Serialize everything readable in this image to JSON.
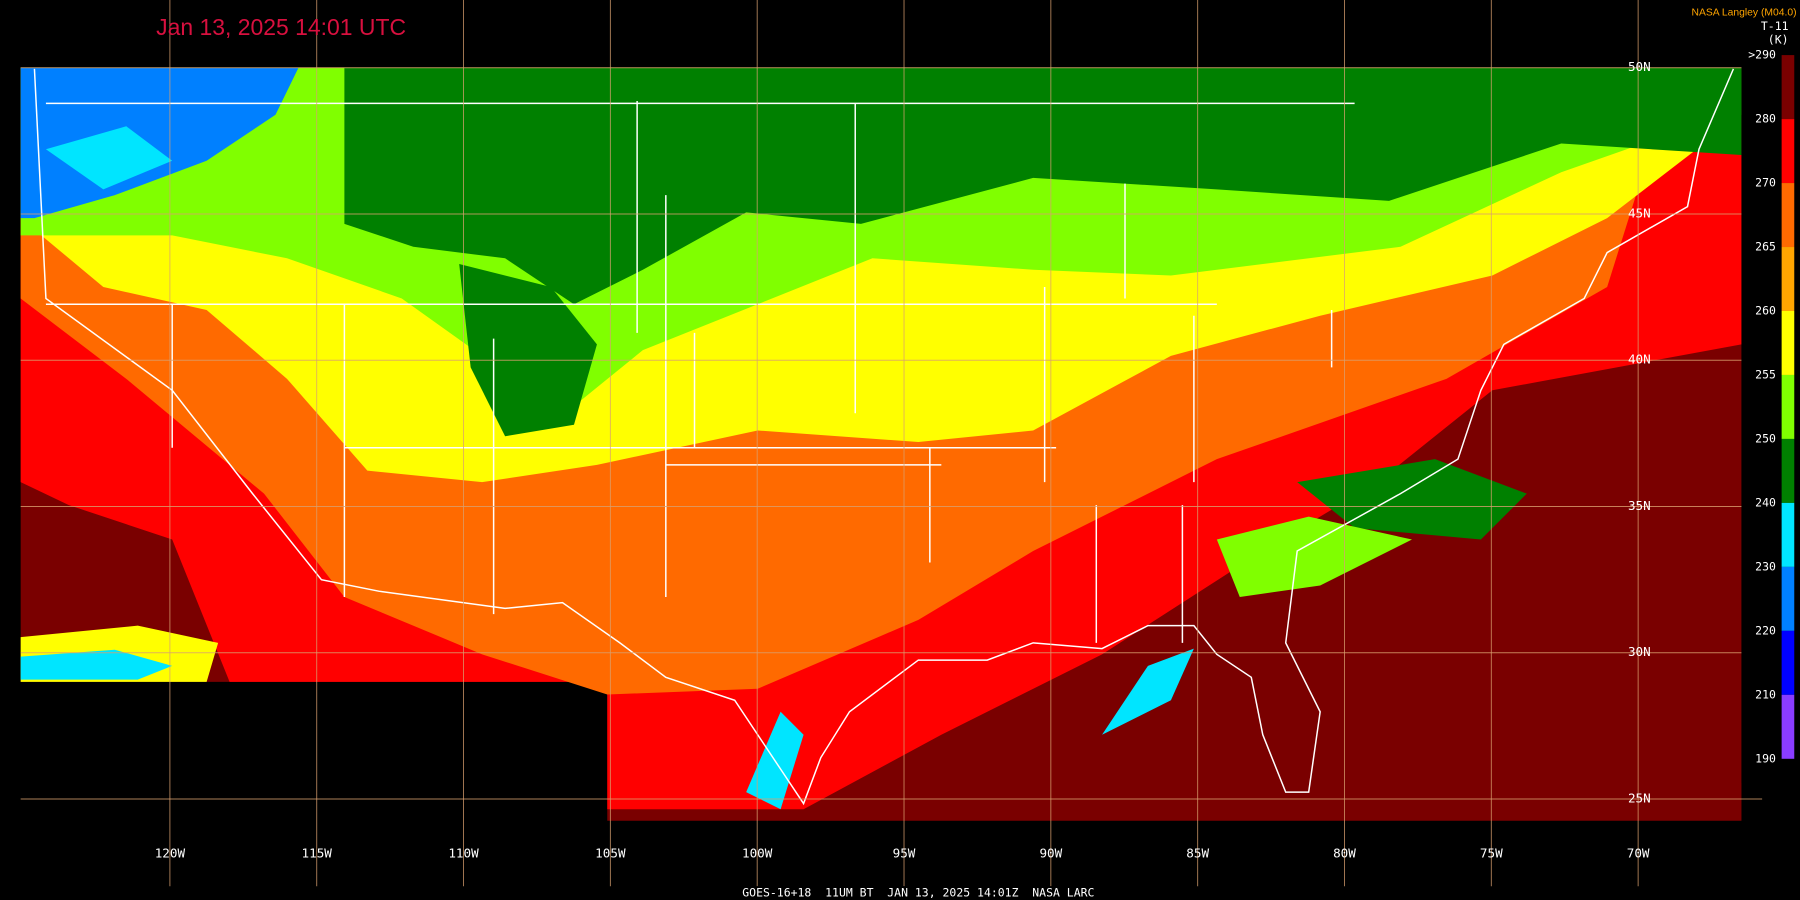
{
  "header": {
    "title": "Jan 13, 2025 14:01 UTC",
    "credit": "NASA Langley (M04.0)"
  },
  "legend": {
    "title": "T-11",
    "unit": "(K)",
    "labels": [
      ">290",
      "280",
      "270",
      "265",
      "260",
      "255",
      "250",
      "240",
      "230",
      "220",
      "210",
      "190"
    ],
    "colors": [
      "#7a0000",
      "#ff0000",
      "#ff6a00",
      "#ffa500",
      "#ffff00",
      "#80ff00",
      "#008000",
      "#00e5ff",
      "#0080ff",
      "#0000ff",
      "#8a3cff"
    ]
  },
  "latitude_labels": [
    "50N",
    "45N",
    "40N",
    "35N",
    "30N",
    "25N"
  ],
  "longitude_labels": [
    "120W",
    "115W",
    "110W",
    "105W",
    "100W",
    "95W",
    "90W",
    "85W",
    "80W",
    "75W",
    "70W"
  ],
  "footer": "GOES-16+18  11UM BT  JAN 13, 2025 14:01Z  NASA LARC"
}
